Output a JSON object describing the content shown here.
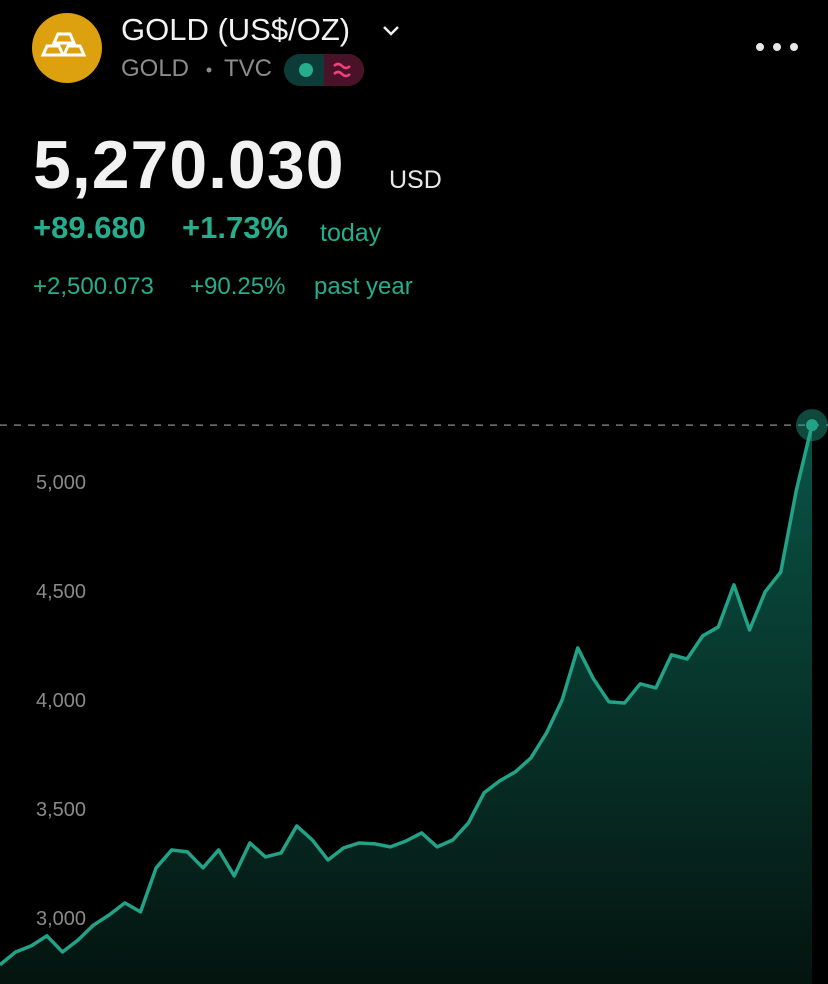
{
  "header": {
    "title": "GOLD (US$/OZ)",
    "symbol": "GOLD",
    "exchange": "TVC"
  },
  "quote": {
    "price": "5,270.030",
    "currency": "USD",
    "change": "+89.680",
    "change_percent": "+1.73%",
    "change_period": "today",
    "year_change": "+2,500.073",
    "year_change_percent": "+90.25%",
    "year_period": "past year"
  },
  "chart_data": {
    "type": "area",
    "color": "#22a287",
    "values": [
      2794,
      2853,
      2881,
      2927,
      2853,
      2908,
      2977,
      3023,
      3078,
      3037,
      3239,
      3321,
      3312,
      3239,
      3321,
      3202,
      3353,
      3289,
      3307,
      3431,
      3367,
      3275,
      3330,
      3353,
      3349,
      3335,
      3362,
      3399,
      3335,
      3367,
      3445,
      3583,
      3638,
      3679,
      3743,
      3858,
      4009,
      4248,
      4106,
      4000,
      3995,
      4083,
      4064,
      4216,
      4197,
      4303,
      4344,
      4537,
      4330,
      4505,
      4596,
      4972,
      5270
    ],
    "ylim": [
      2706,
      5752
    ],
    "yticks": [
      {
        "value": 3000,
        "label": "3,000"
      },
      {
        "value": 3500,
        "label": "3,500"
      },
      {
        "value": 4000,
        "label": "4,000"
      },
      {
        "value": 4500,
        "label": "4,500"
      },
      {
        "value": 5000,
        "label": "5,000"
      }
    ]
  }
}
